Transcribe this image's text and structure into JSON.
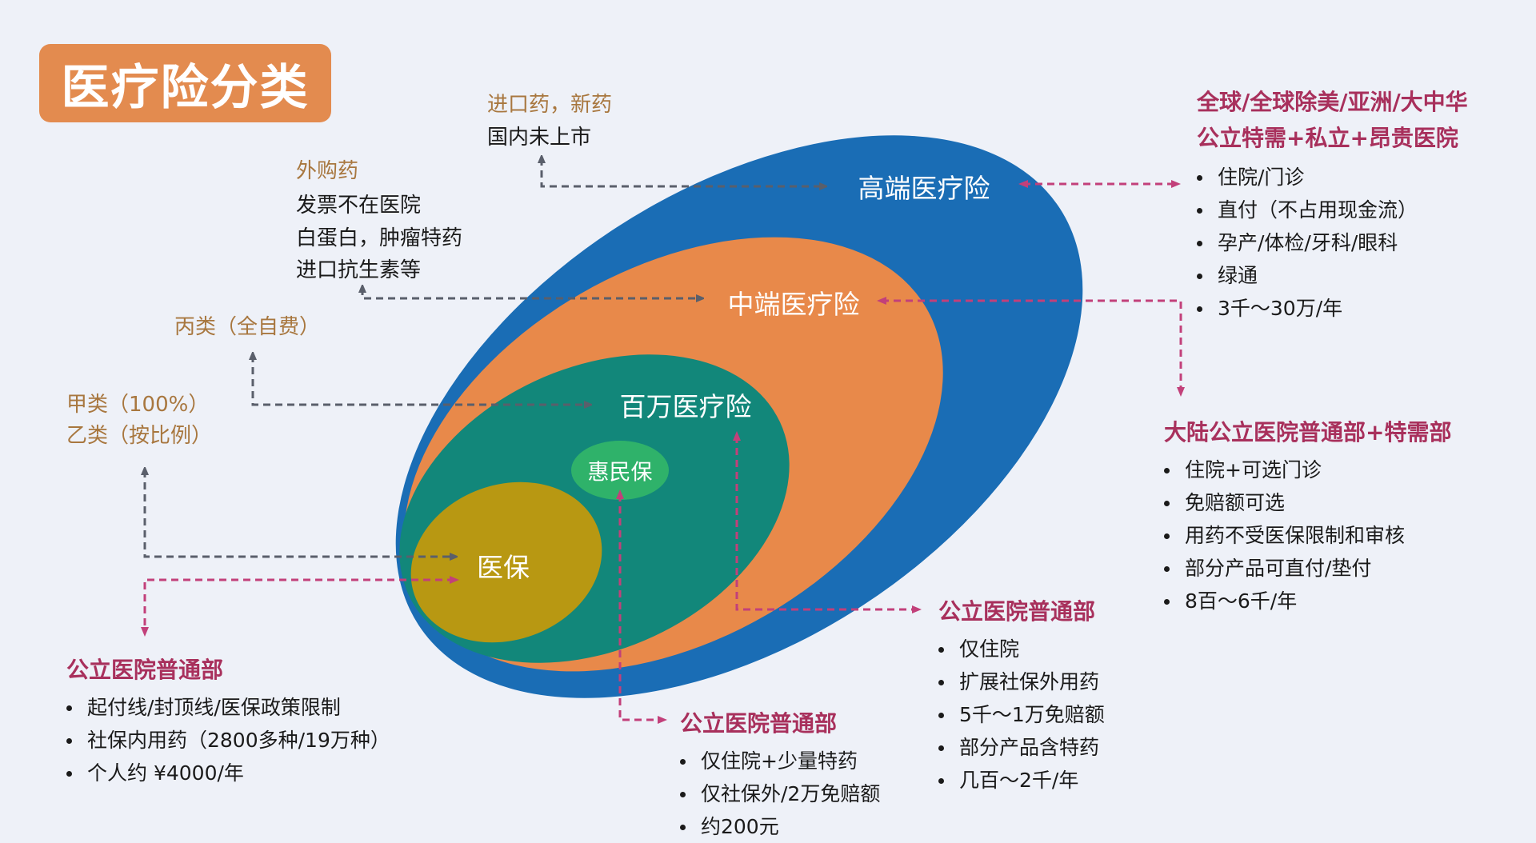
{
  "title": "医疗险分类",
  "colors": {
    "background": "#eef1f8",
    "high_end": "#1a6db5",
    "mid_end": "#e8894a",
    "million": "#12877a",
    "social": "#b89812",
    "huiminbao": "#2fb26a",
    "arrow_gray": "#5a5f6b",
    "arrow_pink": "#c2407a"
  },
  "rings": {
    "high_end": "高端医疗险",
    "mid_end": "中端医疗险",
    "million": "百万医疗险",
    "huiminbao": "惠民保",
    "social": "医保"
  },
  "drugs": {
    "imported": {
      "label": "进口药，新药",
      "lines": [
        "国内未上市"
      ]
    },
    "external": {
      "label": "外购药",
      "lines": [
        "发票不在医院",
        "白蛋白，肿瘤特药",
        "进口抗生素等"
      ]
    },
    "class_c": "丙类（全自费）",
    "class_a": "甲类（100%）",
    "class_b": "乙类（按比例）"
  },
  "coverage": {
    "high_end": {
      "title_lines": [
        "全球/全球除美/亚洲/大中华",
        "公立特需+私立+昂贵医院"
      ],
      "items": [
        "住院/门诊",
        "直付（不占用现金流）",
        "孕产/体检/牙科/眼科",
        "绿通",
        "3千～30万/年"
      ]
    },
    "mid_end": {
      "title": "大陆公立医院普通部+特需部",
      "items": [
        "住院+可选门诊",
        "免赔额可选",
        "用药不受医保限制和审核",
        "部分产品可直付/垫付",
        "8百～6千/年"
      ]
    },
    "million": {
      "title": "公立医院普通部",
      "items": [
        "仅住院",
        "扩展社保外用药",
        "5千～1万免赔额",
        "部分产品含特药",
        "几百～2千/年"
      ]
    },
    "huiminbao": {
      "title": "公立医院普通部",
      "items": [
        "仅住院+少量特药",
        "仅社保外/2万免赔额",
        "约200元"
      ]
    },
    "social": {
      "title": "公立医院普通部",
      "items": [
        "起付线/封顶线/医保政策限制",
        "社保内用药（2800多种/19万种）",
        "个人约 ¥4000/年"
      ]
    }
  }
}
